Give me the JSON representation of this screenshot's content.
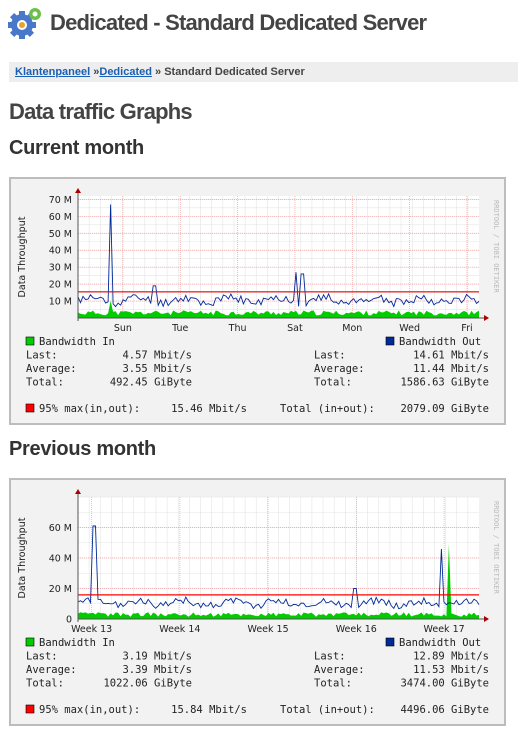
{
  "header": {
    "icon": "gear-icon",
    "title": "Dedicated - Standard Dedicated Server"
  },
  "breadcrumb": {
    "link1": "Klantenpaneel",
    "sep1": " »",
    "link2": "Dedicated",
    "sep2": " » ",
    "current": "Standard Dedicated Server"
  },
  "page": {
    "title": "Data traffic Graphs"
  },
  "colors": {
    "in": "#00cc00",
    "out": "#002a97",
    "pct": "#ff0000"
  },
  "graphs": [
    {
      "heading": "Current month",
      "ylabel": "Data Throughput",
      "watermark": "RRDTOOL / TOBI OETIKER",
      "ylabels": [
        "10 M",
        "20 M",
        "30 M",
        "40 M",
        "50 M",
        "60 M",
        "70 M"
      ],
      "yvals": [
        10,
        20,
        30,
        40,
        50,
        60,
        70
      ],
      "ymax": 72,
      "xlabels": [
        "Sun",
        "Tue",
        "Thu",
        "Sat",
        "Mon",
        "Wed",
        "Fri"
      ],
      "xpos": [
        0.112,
        0.255,
        0.398,
        0.541,
        0.684,
        0.827,
        0.97
      ],
      "pct95_val": 15.46,
      "legend_in": "Bandwidth In",
      "legend_out": "Bandwidth Out",
      "in": {
        "last_label": "Last:",
        "last": "4.57 Mbit/s",
        "avg_label": "Average:",
        "avg": "3.55 Mbit/s",
        "total_label": "Total:",
        "total": "492.45 GiByte"
      },
      "out": {
        "last_label": "Last:",
        "last": "14.61 Mbit/s",
        "avg_label": "Average:",
        "avg": "11.44 Mbit/s",
        "total_label": "Total:",
        "total": "1586.63 GiByte"
      },
      "pct_label": "95% max(in,out):",
      "pct_value": "15.46 Mbit/s",
      "total_label": "Total (in+out):",
      "total_value": "2079.09 GiByte",
      "spikes_out": [
        [
          0.08,
          67
        ],
        [
          0.19,
          19
        ],
        [
          0.545,
          27
        ],
        [
          0.56,
          26
        ]
      ],
      "spikes_in": [
        [
          0.08,
          10
        ]
      ]
    },
    {
      "heading": "Previous month",
      "ylabel": "Data Throughput",
      "watermark": "RRDTOOL / TOBI OETIKER",
      "ylabels": [
        "0",
        "20 M",
        "40 M",
        "60 M"
      ],
      "yvals": [
        0,
        20,
        40,
        60
      ],
      "ymax": 80,
      "xlabels": [
        "Week 13",
        "Week 14",
        "Week 15",
        "Week 16",
        "Week 17"
      ],
      "xpos": [
        0.034,
        0.254,
        0.474,
        0.694,
        0.913
      ],
      "pct95_val": 15.84,
      "legend_in": "Bandwidth In",
      "legend_out": "Bandwidth Out",
      "in": {
        "last_label": "Last:",
        "last": "3.19 Mbit/s",
        "avg_label": "Average:",
        "avg": "3.39 Mbit/s",
        "total_label": "Total:",
        "total": "1022.06 GiByte"
      },
      "out": {
        "last_label": "Last:",
        "last": "12.89 Mbit/s",
        "avg_label": "Average:",
        "avg": "11.53 Mbit/s",
        "total_label": "Total:",
        "total": "3474.00 GiByte"
      },
      "pct_label": "95% max(in,out):",
      "pct_value": "15.84 Mbit/s",
      "total_label": "Total (in+out):",
      "total_value": "4496.06 GiByte",
      "spikes_out": [
        [
          0.04,
          61
        ],
        [
          0.69,
          20
        ],
        [
          0.905,
          46
        ]
      ],
      "spikes_in": [
        [
          0.925,
          49
        ]
      ]
    }
  ]
}
